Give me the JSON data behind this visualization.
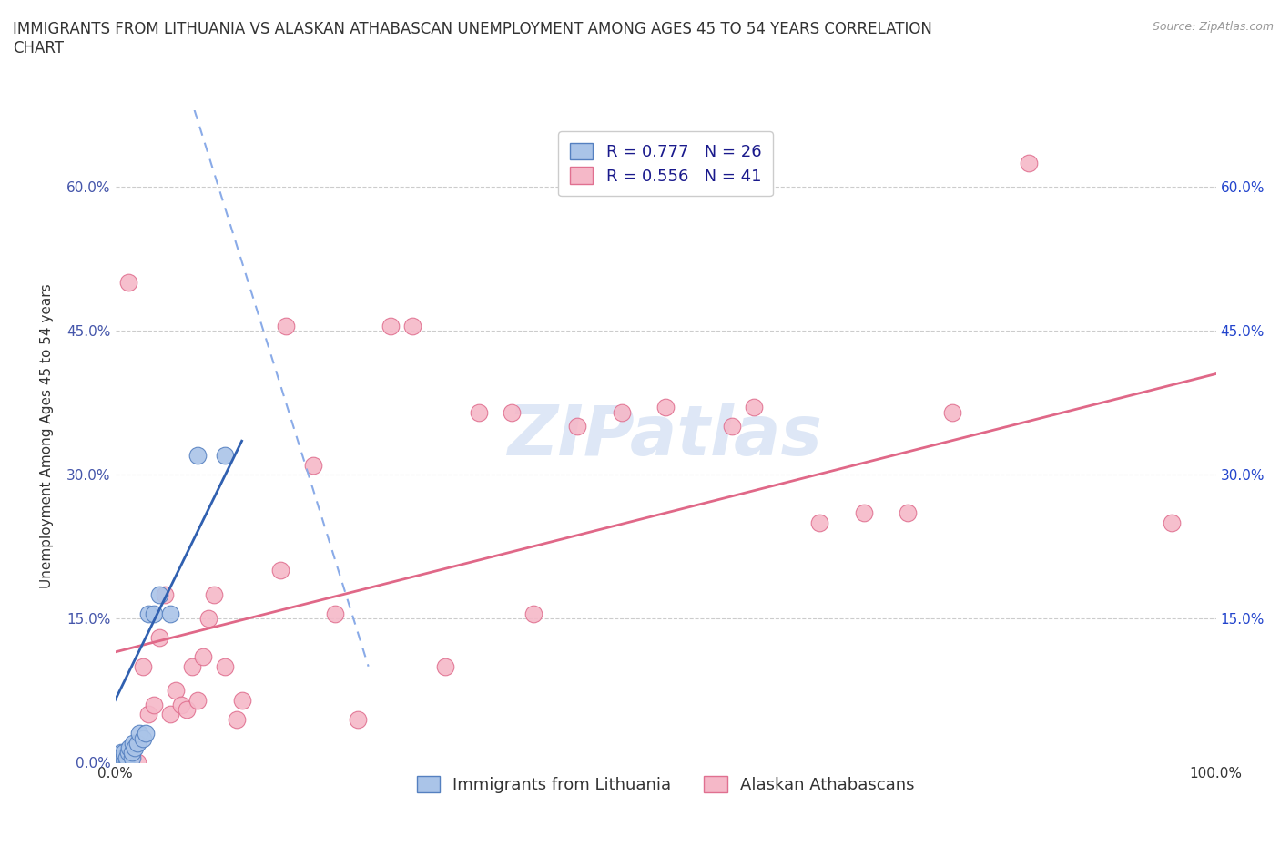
{
  "title": "IMMIGRANTS FROM LITHUANIA VS ALASKAN ATHABASCAN UNEMPLOYMENT AMONG AGES 45 TO 54 YEARS CORRELATION\nCHART",
  "source_text": "Source: ZipAtlas.com",
  "ylabel": "Unemployment Among Ages 45 to 54 years",
  "xlim": [
    0.0,
    1.0
  ],
  "ylim": [
    0.0,
    0.68
  ],
  "yticks": [
    0.0,
    0.15,
    0.3,
    0.45,
    0.6
  ],
  "ytick_labels_left": [
    "0.0%",
    "15.0%",
    "30.0%",
    "45.0%",
    "60.0%"
  ],
  "ytick_labels_right": [
    "15.0%",
    "30.0%",
    "45.0%",
    "60.0%"
  ],
  "ytick_right_vals": [
    0.15,
    0.3,
    0.45,
    0.6
  ],
  "xtick_vals": [
    0.0,
    1.0
  ],
  "xtick_labels": [
    "0.0%",
    "100.0%"
  ],
  "blue_scatter_x": [
    0.005,
    0.005,
    0.005,
    0.005,
    0.005,
    0.008,
    0.008,
    0.008,
    0.01,
    0.01,
    0.012,
    0.013,
    0.015,
    0.015,
    0.016,
    0.018,
    0.02,
    0.022,
    0.025,
    0.028,
    0.03,
    0.035,
    0.04,
    0.05,
    0.075,
    0.1
  ],
  "blue_scatter_y": [
    0.0,
    0.0,
    0.005,
    0.005,
    0.01,
    0.0,
    0.005,
    0.01,
    0.0,
    0.005,
    0.01,
    0.015,
    0.005,
    0.01,
    0.02,
    0.015,
    0.02,
    0.03,
    0.025,
    0.03,
    0.155,
    0.155,
    0.175,
    0.155,
    0.32,
    0.32
  ],
  "pink_scatter_x": [
    0.012,
    0.02,
    0.025,
    0.03,
    0.035,
    0.04,
    0.045,
    0.05,
    0.055,
    0.06,
    0.065,
    0.07,
    0.075,
    0.08,
    0.085,
    0.09,
    0.1,
    0.11,
    0.115,
    0.15,
    0.155,
    0.18,
    0.2,
    0.22,
    0.25,
    0.27,
    0.3,
    0.33,
    0.36,
    0.38,
    0.42,
    0.46,
    0.5,
    0.56,
    0.58,
    0.64,
    0.68,
    0.72,
    0.76,
    0.83,
    0.96
  ],
  "pink_scatter_y": [
    0.5,
    0.0,
    0.1,
    0.05,
    0.06,
    0.13,
    0.175,
    0.05,
    0.075,
    0.06,
    0.055,
    0.1,
    0.065,
    0.11,
    0.15,
    0.175,
    0.1,
    0.045,
    0.065,
    0.2,
    0.455,
    0.31,
    0.155,
    0.045,
    0.455,
    0.455,
    0.1,
    0.365,
    0.365,
    0.155,
    0.35,
    0.365,
    0.37,
    0.35,
    0.37,
    0.25,
    0.26,
    0.26,
    0.365,
    0.625,
    0.25
  ],
  "blue_solid_line_x": [
    0.0,
    0.115
  ],
  "blue_solid_line_y": [
    0.065,
    0.335
  ],
  "blue_dash_line_x": [
    0.072,
    0.23
  ],
  "blue_dash_line_y": [
    0.68,
    0.1
  ],
  "pink_line_x": [
    0.0,
    1.0
  ],
  "pink_line_y": [
    0.115,
    0.405
  ],
  "blue_fill_color": "#aac4e8",
  "pink_fill_color": "#f5b8c8",
  "blue_edge_color": "#5580c0",
  "pink_edge_color": "#e07090",
  "blue_solid_line_color": "#3060b0",
  "blue_dash_line_color": "#8aabe8",
  "pink_line_color": "#e06888",
  "grid_color": "#cccccc",
  "left_tick_color": "#4455aa",
  "right_tick_color": "#2244cc",
  "watermark_color": "#c8d8f0",
  "R_blue": "0.777",
  "N_blue": "26",
  "R_pink": "0.556",
  "N_pink": "41",
  "legend_label_blue": "Immigrants from Lithuania",
  "legend_label_pink": "Alaskan Athabascans",
  "watermark": "ZIPatlas",
  "title_fontsize": 12,
  "axis_label_fontsize": 11,
  "tick_fontsize": 11,
  "legend_fontsize": 13,
  "source_fontsize": 9
}
